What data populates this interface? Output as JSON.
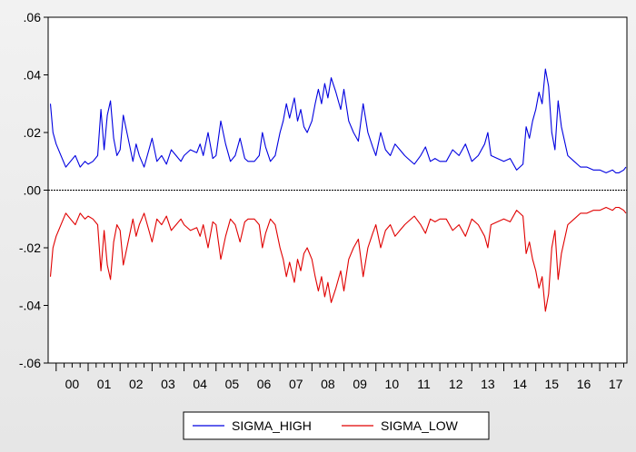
{
  "chart_data": {
    "type": "line",
    "title": "",
    "xlabel": "",
    "ylabel": "",
    "xlim": [
      1999.75,
      2017.85
    ],
    "ylim": [
      -0.06,
      0.06
    ],
    "y_ticks": [
      0.06,
      0.04,
      0.02,
      0.0,
      -0.02,
      -0.04,
      -0.06
    ],
    "y_tick_labels": [
      ".06",
      ".04",
      ".02",
      ".00",
      "-.02",
      "-.04",
      "-.06"
    ],
    "x_tick_labels": [
      "00",
      "01",
      "02",
      "03",
      "04",
      "05",
      "06",
      "07",
      "08",
      "09",
      "10",
      "11",
      "12",
      "13",
      "14",
      "15",
      "16",
      "17"
    ],
    "x_tick_years": [
      2000,
      2001,
      2002,
      2003,
      2004,
      2005,
      2006,
      2007,
      2008,
      2009,
      2010,
      2011,
      2012,
      2013,
      2014,
      2015,
      2016,
      2017
    ],
    "grid": false,
    "legend_position": "bottom-center",
    "series": [
      {
        "name": "SIGMA_HIGH",
        "color": "#0000e0",
        "x": [
          1999.82,
          1999.9,
          2000.0,
          2000.15,
          2000.3,
          2000.45,
          2000.6,
          2000.75,
          2000.9,
          2001.0,
          2001.15,
          2001.3,
          2001.4,
          2001.5,
          2001.6,
          2001.7,
          2001.8,
          2001.9,
          2002.0,
          2002.1,
          2002.25,
          2002.4,
          2002.5,
          2002.6,
          2002.75,
          2002.9,
          2003.0,
          2003.15,
          2003.3,
          2003.45,
          2003.6,
          2003.75,
          2003.9,
          2004.0,
          2004.2,
          2004.4,
          2004.5,
          2004.6,
          2004.75,
          2004.9,
          2005.0,
          2005.15,
          2005.3,
          2005.45,
          2005.6,
          2005.75,
          2005.9,
          2006.0,
          2006.2,
          2006.35,
          2006.45,
          2006.55,
          2006.7,
          2006.85,
          2007.0,
          2007.1,
          2007.2,
          2007.3,
          2007.45,
          2007.55,
          2007.65,
          2007.75,
          2007.85,
          2008.0,
          2008.1,
          2008.2,
          2008.3,
          2008.4,
          2008.5,
          2008.6,
          2008.75,
          2008.9,
          2009.0,
          2009.15,
          2009.3,
          2009.45,
          2009.6,
          2009.75,
          2009.9,
          2010.0,
          2010.15,
          2010.3,
          2010.45,
          2010.6,
          2010.75,
          2010.9,
          2011.0,
          2011.2,
          2011.4,
          2011.55,
          2011.7,
          2011.85,
          2012.0,
          2012.2,
          2012.4,
          2012.6,
          2012.8,
          2013.0,
          2013.2,
          2013.4,
          2013.5,
          2013.6,
          2013.8,
          2014.0,
          2014.2,
          2014.4,
          2014.5,
          2014.6,
          2014.7,
          2014.8,
          2014.9,
          2015.0,
          2015.1,
          2015.2,
          2015.3,
          2015.4,
          2015.5,
          2015.6,
          2015.7,
          2015.8,
          2016.0,
          2016.2,
          2016.4,
          2016.6,
          2016.8,
          2017.0,
          2017.2,
          2017.4,
          2017.5,
          2017.6,
          2017.75,
          2017.82
        ],
        "values": [
          0.03,
          0.02,
          0.016,
          0.012,
          0.008,
          0.01,
          0.012,
          0.008,
          0.01,
          0.009,
          0.01,
          0.012,
          0.028,
          0.014,
          0.026,
          0.031,
          0.018,
          0.012,
          0.014,
          0.026,
          0.018,
          0.01,
          0.016,
          0.012,
          0.008,
          0.014,
          0.018,
          0.01,
          0.012,
          0.009,
          0.014,
          0.012,
          0.01,
          0.012,
          0.014,
          0.013,
          0.016,
          0.012,
          0.02,
          0.011,
          0.012,
          0.024,
          0.016,
          0.01,
          0.012,
          0.018,
          0.011,
          0.01,
          0.01,
          0.012,
          0.02,
          0.015,
          0.01,
          0.012,
          0.02,
          0.024,
          0.03,
          0.025,
          0.032,
          0.024,
          0.028,
          0.022,
          0.02,
          0.024,
          0.03,
          0.035,
          0.03,
          0.037,
          0.032,
          0.039,
          0.034,
          0.028,
          0.035,
          0.024,
          0.02,
          0.017,
          0.03,
          0.02,
          0.015,
          0.012,
          0.02,
          0.014,
          0.012,
          0.016,
          0.014,
          0.012,
          0.011,
          0.009,
          0.012,
          0.015,
          0.01,
          0.011,
          0.01,
          0.01,
          0.014,
          0.012,
          0.016,
          0.01,
          0.012,
          0.016,
          0.02,
          0.012,
          0.011,
          0.01,
          0.011,
          0.007,
          0.008,
          0.009,
          0.022,
          0.018,
          0.024,
          0.028,
          0.034,
          0.03,
          0.042,
          0.036,
          0.02,
          0.014,
          0.031,
          0.022,
          0.012,
          0.01,
          0.008,
          0.008,
          0.007,
          0.007,
          0.006,
          0.007,
          0.006,
          0.006,
          0.007,
          0.008
        ]
      },
      {
        "name": "SIGMA_LOW",
        "color": "#e00000",
        "x": [
          1999.82,
          1999.9,
          2000.0,
          2000.15,
          2000.3,
          2000.45,
          2000.6,
          2000.75,
          2000.9,
          2001.0,
          2001.15,
          2001.3,
          2001.4,
          2001.5,
          2001.6,
          2001.7,
          2001.8,
          2001.9,
          2002.0,
          2002.1,
          2002.25,
          2002.4,
          2002.5,
          2002.6,
          2002.75,
          2002.9,
          2003.0,
          2003.15,
          2003.3,
          2003.45,
          2003.6,
          2003.75,
          2003.9,
          2004.0,
          2004.2,
          2004.4,
          2004.5,
          2004.6,
          2004.75,
          2004.9,
          2005.0,
          2005.15,
          2005.3,
          2005.45,
          2005.6,
          2005.75,
          2005.9,
          2006.0,
          2006.2,
          2006.35,
          2006.45,
          2006.55,
          2006.7,
          2006.85,
          2007.0,
          2007.1,
          2007.2,
          2007.3,
          2007.45,
          2007.55,
          2007.65,
          2007.75,
          2007.85,
          2008.0,
          2008.1,
          2008.2,
          2008.3,
          2008.4,
          2008.5,
          2008.6,
          2008.75,
          2008.9,
          2009.0,
          2009.15,
          2009.3,
          2009.45,
          2009.6,
          2009.75,
          2009.9,
          2010.0,
          2010.15,
          2010.3,
          2010.45,
          2010.6,
          2010.75,
          2010.9,
          2011.0,
          2011.2,
          2011.4,
          2011.55,
          2011.7,
          2011.85,
          2012.0,
          2012.2,
          2012.4,
          2012.6,
          2012.8,
          2013.0,
          2013.2,
          2013.4,
          2013.5,
          2013.6,
          2013.8,
          2014.0,
          2014.2,
          2014.4,
          2014.5,
          2014.6,
          2014.7,
          2014.8,
          2014.9,
          2015.0,
          2015.1,
          2015.2,
          2015.3,
          2015.4,
          2015.5,
          2015.6,
          2015.7,
          2015.8,
          2016.0,
          2016.2,
          2016.4,
          2016.6,
          2016.8,
          2017.0,
          2017.2,
          2017.4,
          2017.5,
          2017.6,
          2017.75,
          2017.82
        ],
        "values": [
          -0.03,
          -0.02,
          -0.016,
          -0.012,
          -0.008,
          -0.01,
          -0.012,
          -0.008,
          -0.01,
          -0.009,
          -0.01,
          -0.012,
          -0.028,
          -0.014,
          -0.026,
          -0.031,
          -0.018,
          -0.012,
          -0.014,
          -0.026,
          -0.018,
          -0.01,
          -0.016,
          -0.012,
          -0.008,
          -0.014,
          -0.018,
          -0.01,
          -0.012,
          -0.009,
          -0.014,
          -0.012,
          -0.01,
          -0.012,
          -0.014,
          -0.013,
          -0.016,
          -0.012,
          -0.02,
          -0.011,
          -0.012,
          -0.024,
          -0.016,
          -0.01,
          -0.012,
          -0.018,
          -0.011,
          -0.01,
          -0.01,
          -0.012,
          -0.02,
          -0.015,
          -0.01,
          -0.012,
          -0.02,
          -0.024,
          -0.03,
          -0.025,
          -0.032,
          -0.024,
          -0.028,
          -0.022,
          -0.02,
          -0.024,
          -0.03,
          -0.035,
          -0.03,
          -0.037,
          -0.032,
          -0.039,
          -0.034,
          -0.028,
          -0.035,
          -0.024,
          -0.02,
          -0.017,
          -0.03,
          -0.02,
          -0.015,
          -0.012,
          -0.02,
          -0.014,
          -0.012,
          -0.016,
          -0.014,
          -0.012,
          -0.011,
          -0.009,
          -0.012,
          -0.015,
          -0.01,
          -0.011,
          -0.01,
          -0.01,
          -0.014,
          -0.012,
          -0.016,
          -0.01,
          -0.012,
          -0.016,
          -0.02,
          -0.012,
          -0.011,
          -0.01,
          -0.011,
          -0.007,
          -0.008,
          -0.009,
          -0.022,
          -0.018,
          -0.024,
          -0.028,
          -0.034,
          -0.03,
          -0.042,
          -0.036,
          -0.02,
          -0.014,
          -0.031,
          -0.022,
          -0.012,
          -0.01,
          -0.008,
          -0.008,
          -0.007,
          -0.007,
          -0.006,
          -0.007,
          -0.006,
          -0.006,
          -0.007,
          -0.008
        ]
      }
    ]
  }
}
